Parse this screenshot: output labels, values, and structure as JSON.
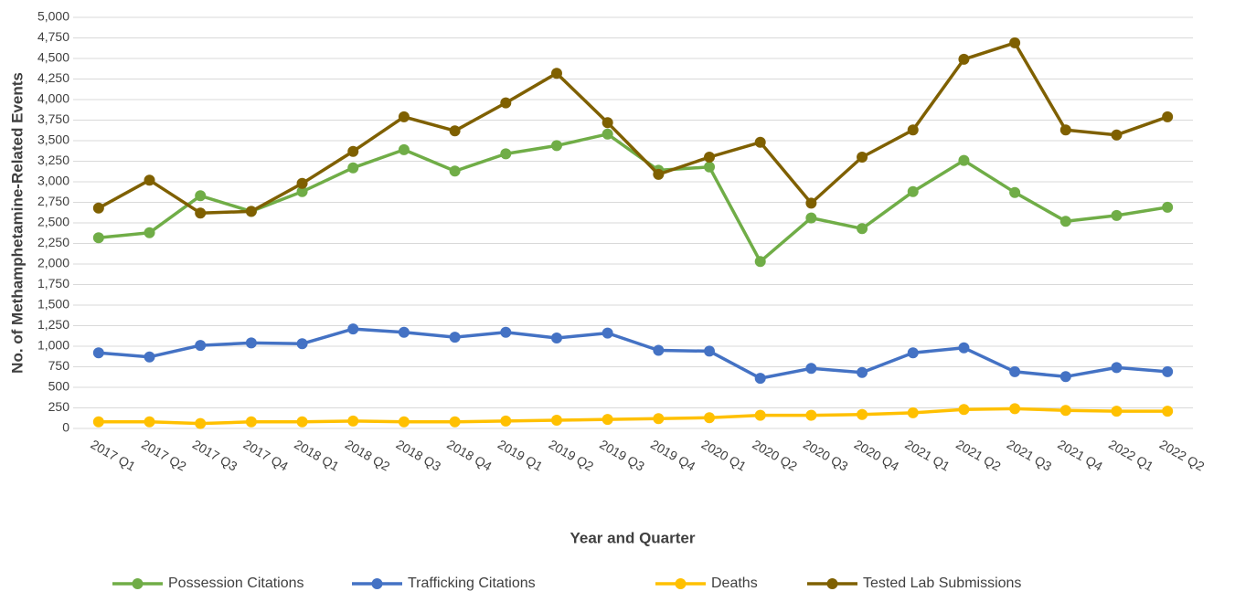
{
  "chart_data": {
    "type": "line",
    "y_label": "No. of Methamphetamine-Related Events",
    "x_label": "Year and Quarter",
    "categories": [
      "2017 Q1",
      "2017 Q2",
      "2017 Q3",
      "2017 Q4",
      "2018 Q1",
      "2018 Q2",
      "2018 Q3",
      "2018 Q4",
      "2019 Q1",
      "2019 Q2",
      "2019 Q3",
      "2019 Q4",
      "2020 Q1",
      "2020 Q2",
      "2020 Q3",
      "2020 Q4",
      "2021 Q1",
      "2021 Q2",
      "2021 Q3",
      "2021 Q4",
      "2022 Q1",
      "2022 Q2"
    ],
    "series": [
      {
        "name": "Possession Citations",
        "color": "#70ad47",
        "values": [
          2320,
          2380,
          2830,
          2640,
          2880,
          3170,
          3390,
          3130,
          3340,
          3440,
          3580,
          3140,
          3180,
          2030,
          2560,
          2430,
          2880,
          3260,
          2870,
          2520,
          2590,
          2690
        ]
      },
      {
        "name": "Trafficking Citations",
        "color": "#4472c4",
        "values": [
          920,
          870,
          1010,
          1040,
          1030,
          1210,
          1170,
          1110,
          1170,
          1100,
          1160,
          950,
          940,
          610,
          730,
          680,
          920,
          980,
          690,
          630,
          740,
          690
        ]
      },
      {
        "name": "Deaths",
        "color": "#ffc000",
        "values": [
          80,
          80,
          60,
          80,
          80,
          90,
          80,
          80,
          90,
          100,
          110,
          120,
          130,
          160,
          160,
          170,
          190,
          230,
          240,
          220,
          210,
          210
        ]
      },
      {
        "name": "Tested Lab Submissions",
        "color": "#7f6000",
        "values": [
          2680,
          3020,
          2620,
          2640,
          2980,
          3370,
          3790,
          3620,
          3960,
          4320,
          3720,
          3090,
          3300,
          3480,
          2740,
          3300,
          3630,
          4490,
          4690,
          3630,
          3570,
          3790
        ]
      }
    ],
    "ylim": [
      0,
      5000
    ],
    "yticks": [
      0,
      250,
      500,
      750,
      {
        "value": 1000,
        "label": "1,000"
      },
      {
        "value": 1250,
        "label": "1,250"
      },
      {
        "value": 1500,
        "label": "1,500"
      },
      {
        "value": 1750,
        "label": "1,750"
      },
      {
        "value": 2000,
        "label": "2,000"
      },
      {
        "value": 2250,
        "label": "2,250"
      },
      {
        "value": 2500,
        "label": "2,500"
      },
      {
        "value": 2750,
        "label": "2,750"
      },
      {
        "value": 3000,
        "label": "3,000"
      },
      {
        "value": 3250,
        "label": "3,250"
      },
      {
        "value": 3500,
        "label": "3,500"
      },
      {
        "value": 3750,
        "label": "3,750"
      },
      {
        "value": 4000,
        "label": "4,000"
      },
      {
        "value": 4250,
        "label": "4,250"
      },
      {
        "value": 4500,
        "label": "4,500"
      },
      {
        "value": 4750,
        "label": "4,750"
      },
      {
        "value": 5000,
        "label": "5,000"
      }
    ],
    "grid": true,
    "legend": "bottom"
  }
}
